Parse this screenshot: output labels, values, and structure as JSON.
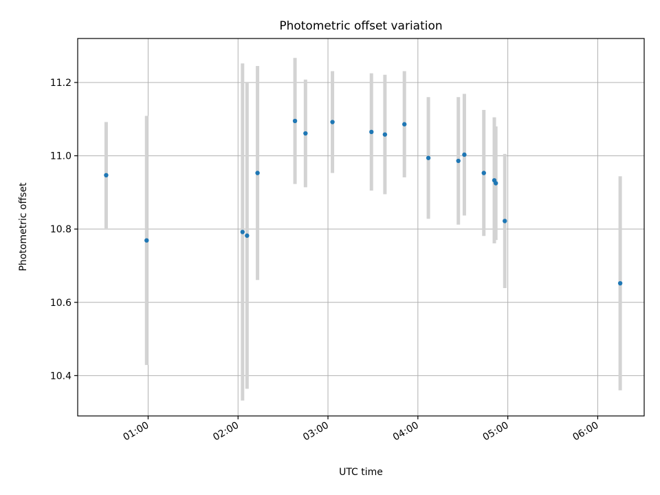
{
  "chart_data": {
    "type": "scatter",
    "title": "Photometric offset variation",
    "xlabel": "UTC time",
    "ylabel": "Photometric offset",
    "x_unit": "time of day (UTC)",
    "xlim": [
      "00:13",
      "06:31"
    ],
    "ylim": [
      10.29,
      11.32
    ],
    "x_ticks": [
      "01:00",
      "02:00",
      "03:00",
      "04:00",
      "05:00",
      "06:00"
    ],
    "y_ticks": [
      10.4,
      10.6,
      10.8,
      11.0,
      11.2
    ],
    "grid": true,
    "errorbar_color": "#d3d3d3",
    "marker_color": "#1f77b4",
    "points": [
      {
        "x": "00:32",
        "y": 10.947,
        "err": 0.145
      },
      {
        "x": "00:59",
        "y": 10.769,
        "err": 0.34
      },
      {
        "x": "02:03",
        "y": 10.792,
        "err": 0.46
      },
      {
        "x": "02:06",
        "y": 10.782,
        "err": 0.418
      },
      {
        "x": "02:13",
        "y": 10.953,
        "err": 0.292
      },
      {
        "x": "02:38",
        "y": 11.095,
        "err": 0.172
      },
      {
        "x": "02:45",
        "y": 11.061,
        "err": 0.147
      },
      {
        "x": "03:03",
        "y": 11.092,
        "err": 0.139
      },
      {
        "x": "03:29",
        "y": 11.065,
        "err": 0.16
      },
      {
        "x": "03:38",
        "y": 11.058,
        "err": 0.163
      },
      {
        "x": "03:51",
        "y": 11.086,
        "err": 0.145
      },
      {
        "x": "04:07",
        "y": 10.994,
        "err": 0.166
      },
      {
        "x": "04:27",
        "y": 10.986,
        "err": 0.174
      },
      {
        "x": "04:31",
        "y": 11.003,
        "err": 0.166
      },
      {
        "x": "04:44",
        "y": 10.953,
        "err": 0.172
      },
      {
        "x": "04:51",
        "y": 10.933,
        "err": 0.172
      },
      {
        "x": "04:52",
        "y": 10.925,
        "err": 0.155
      },
      {
        "x": "04:58",
        "y": 10.822,
        "err": 0.183
      },
      {
        "x": "06:15",
        "y": 10.652,
        "err": 0.292
      }
    ]
  }
}
